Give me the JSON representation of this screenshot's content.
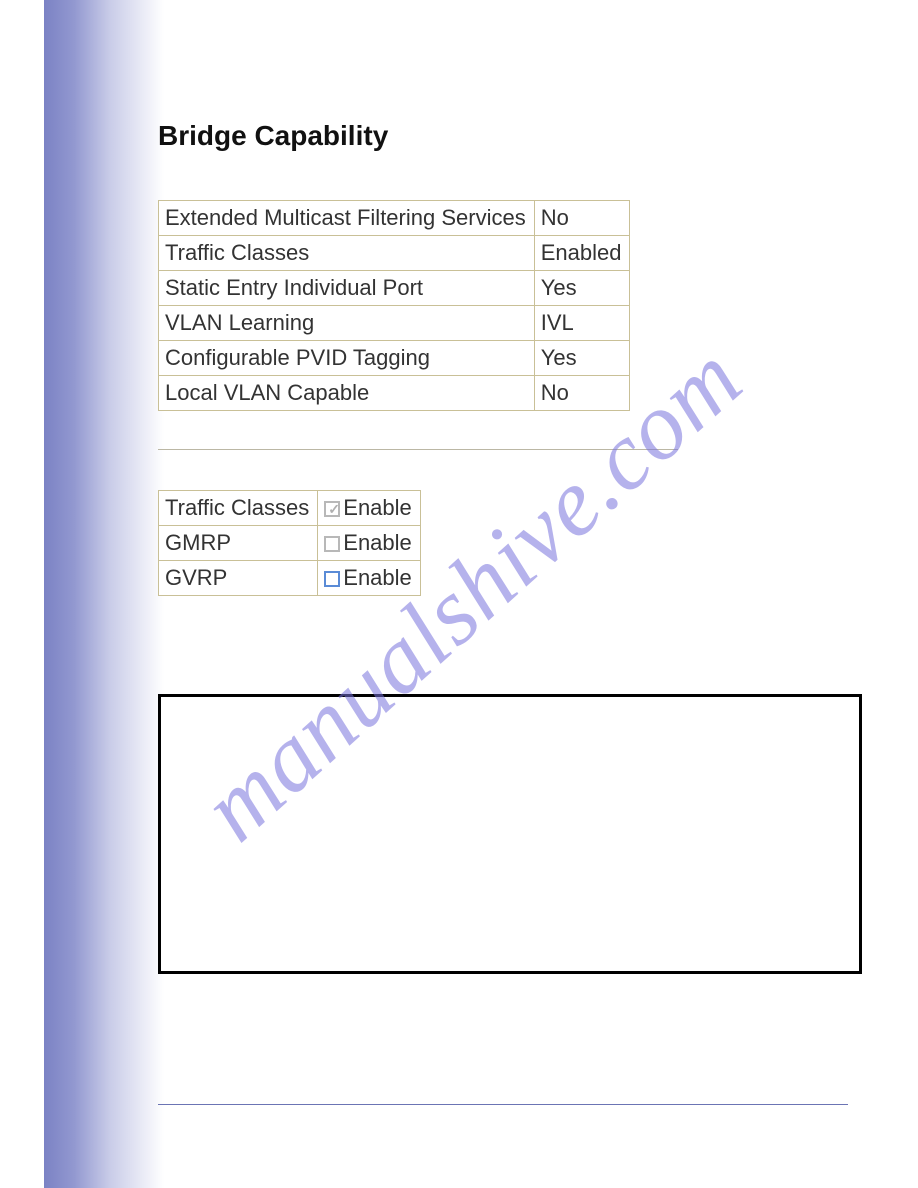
{
  "heading": "Bridge Capability",
  "capability_table": {
    "rows": [
      {
        "label": "Extended Multicast Filtering Services",
        "value": "No"
      },
      {
        "label": "Traffic Classes",
        "value": "Enabled"
      },
      {
        "label": "Static Entry Individual Port",
        "value": "Yes"
      },
      {
        "label": "VLAN Learning",
        "value": "IVL"
      },
      {
        "label": "Configurable PVID Tagging",
        "value": "Yes"
      },
      {
        "label": "Local VLAN Capable",
        "value": "No"
      }
    ]
  },
  "options_table": {
    "enable_label": "Enable",
    "rows": [
      {
        "label": "Traffic Classes",
        "checked": true,
        "disabled": true
      },
      {
        "label": "GMRP",
        "checked": false,
        "disabled": true
      },
      {
        "label": "GVRP",
        "checked": false,
        "disabled": false
      }
    ]
  },
  "watermark": "manualshive.com",
  "colors": {
    "table_border": "#c9c097",
    "gradient_from": "#7b82c4",
    "gradient_to": "#ffffff",
    "heading_text": "#111111",
    "cell_text": "#333333",
    "checkbox_enabled_border": "#5a8bd6",
    "checkbox_disabled_border": "#b8b8b8",
    "footer_line": "#6b74b4",
    "watermark_color": "rgba(120,115,220,0.55)"
  }
}
